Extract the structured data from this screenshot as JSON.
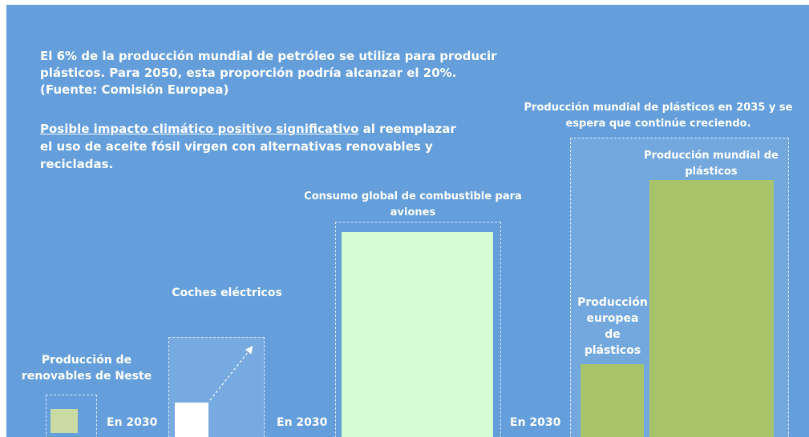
{
  "intro": {
    "lines": [
      "El 6% de la producción mundial de petróleo se utiliza para producir",
      "plásticos. Para 2050, esta proporción podría alcanzar el 20%.",
      "(Fuente: Comisión Europea)"
    ]
  },
  "impact": {
    "highlight": "Posible impacto climático positivo significativo",
    "lines": [
      " al reemplazar",
      "el uso de aceite fósil virgen con alternativas renovables y",
      "recicladas."
    ]
  },
  "groups": [
    {
      "label": [
        "Producción de",
        "renovables de Neste"
      ],
      "note": "En 2030"
    },
    {
      "label": [
        "Coches eléctricos"
      ],
      "note": "En 2030"
    },
    {
      "label": [
        "Consumo global de combustible para",
        "aviones"
      ],
      "note": "En 2030"
    },
    {
      "label": [
        "Producción mundial de plásticos en 2035 y se",
        "espera que continúe creciendo."
      ]
    }
  ],
  "plastics": {
    "europe": [
      "Producción",
      "europea",
      "de",
      "plásticos"
    ],
    "world": [
      "Producción mundial de",
      "plásticos"
    ]
  }
}
